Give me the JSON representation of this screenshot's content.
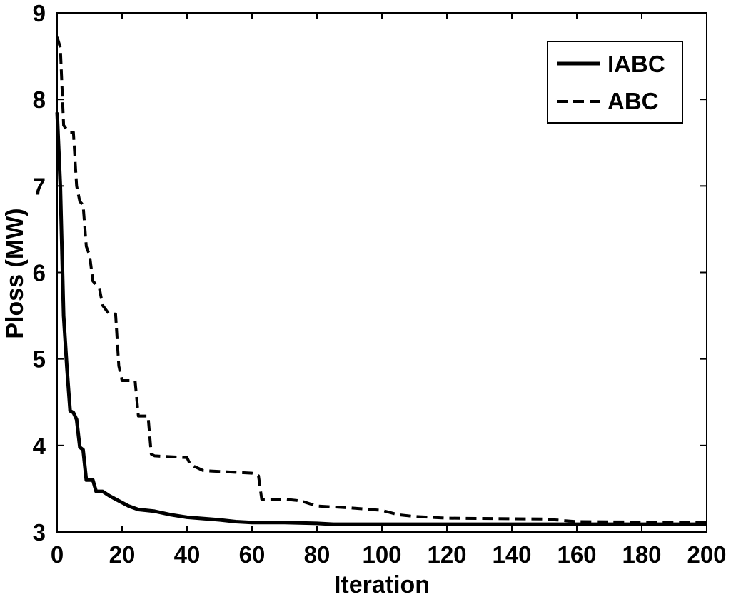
{
  "chart_data": {
    "type": "line",
    "title": "",
    "xlabel": "Iteration",
    "ylabel": "Ploss (MW)",
    "xlim": [
      0,
      200
    ],
    "ylim": [
      3,
      9
    ],
    "xticks": [
      0,
      20,
      40,
      60,
      80,
      100,
      120,
      140,
      160,
      180,
      200
    ],
    "yticks": [
      3,
      4,
      5,
      6,
      7,
      8,
      9
    ],
    "grid": false,
    "legend_position": "top-right",
    "series": [
      {
        "name": "IABC",
        "style": "solid",
        "color": "#000000",
        "x": [
          0,
          1,
          2,
          3,
          4,
          5,
          6,
          7,
          8,
          9,
          11,
          12,
          14,
          16,
          18,
          20,
          22,
          25,
          30,
          35,
          40,
          50,
          55,
          60,
          70,
          80,
          85,
          100,
          120,
          150,
          200
        ],
        "y": [
          7.85,
          7.0,
          5.5,
          4.9,
          4.4,
          4.38,
          4.3,
          3.98,
          3.95,
          3.6,
          3.6,
          3.47,
          3.47,
          3.42,
          3.38,
          3.34,
          3.3,
          3.26,
          3.24,
          3.2,
          3.17,
          3.14,
          3.12,
          3.11,
          3.11,
          3.1,
          3.09,
          3.09,
          3.09,
          3.09,
          3.09
        ]
      },
      {
        "name": "ABC",
        "style": "dashed",
        "color": "#000000",
        "x": [
          0,
          1,
          2,
          3,
          4,
          5,
          6,
          7,
          8,
          9,
          10,
          11,
          13,
          14,
          16,
          18,
          19,
          20,
          22,
          24,
          25,
          28,
          29,
          30,
          40,
          41,
          45,
          50,
          60,
          62,
          63,
          70,
          75,
          80,
          90,
          100,
          105,
          110,
          120,
          150,
          160,
          200
        ],
        "y": [
          8.72,
          8.6,
          7.7,
          7.65,
          7.62,
          7.62,
          7.0,
          6.82,
          6.78,
          6.3,
          6.2,
          5.9,
          5.82,
          5.62,
          5.52,
          5.52,
          4.92,
          4.75,
          4.75,
          4.75,
          4.34,
          4.34,
          3.9,
          3.88,
          3.86,
          3.78,
          3.71,
          3.7,
          3.68,
          3.65,
          3.38,
          3.38,
          3.36,
          3.3,
          3.28,
          3.25,
          3.2,
          3.18,
          3.16,
          3.15,
          3.12,
          3.11
        ]
      }
    ]
  }
}
